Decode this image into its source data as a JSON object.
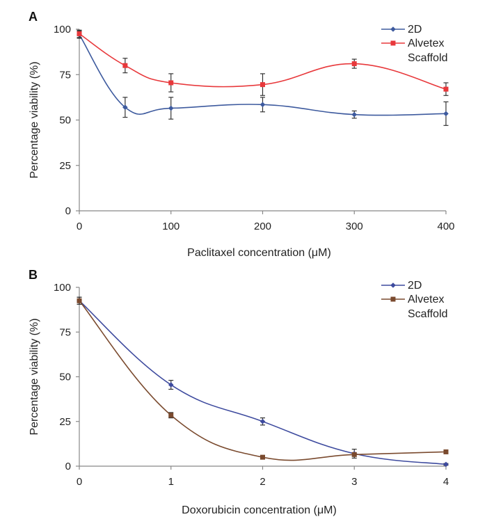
{
  "chart_data": [
    {
      "panel_label": "A",
      "type": "line",
      "xlabel": "Paclitaxel concentration (μM)",
      "ylabel": "Percentage viability (%)",
      "xlim": [
        0,
        400
      ],
      "ylim": [
        0,
        100
      ],
      "x_ticks": [
        0,
        100,
        200,
        300,
        400
      ],
      "y_ticks": [
        0,
        25,
        50,
        75,
        100
      ],
      "legend_position": "top-right",
      "series": [
        {
          "name": "2D",
          "color": "#3d5a9e",
          "marker": "diamond",
          "x": [
            0,
            50,
            100,
            200,
            300,
            400
          ],
          "values": [
            97,
            57,
            56.5,
            58.5,
            53,
            53.5
          ],
          "errors": [
            2,
            5.5,
            6,
            4,
            2,
            6.5
          ]
        },
        {
          "name": "Alvetex Scaffold",
          "color": "#e8383b",
          "marker": "square",
          "x": [
            0,
            50,
            100,
            200,
            300,
            400
          ],
          "values": [
            97.5,
            80,
            70.5,
            69.5,
            81,
            67
          ],
          "errors": [
            2,
            4,
            5,
            6,
            2.5,
            3.5
          ]
        }
      ]
    },
    {
      "panel_label": "B",
      "type": "line",
      "xlabel": "Doxorubicin concentration (μM)",
      "ylabel": "Percentage viability (%)",
      "xlim": [
        0,
        4
      ],
      "ylim": [
        0,
        100
      ],
      "x_ticks": [
        0,
        1,
        2,
        3,
        4
      ],
      "y_ticks": [
        0,
        25,
        50,
        75,
        100
      ],
      "legend_position": "top-right",
      "series": [
        {
          "name": "2D",
          "color": "#3d4a9e",
          "marker": "diamond",
          "x": [
            0,
            1,
            2,
            3,
            4
          ],
          "values": [
            92.5,
            45.5,
            25,
            7,
            1
          ],
          "errors": [
            2,
            2.5,
            2,
            2.5,
            0.5
          ]
        },
        {
          "name": "Alvetex Scaffold",
          "color": "#7a4a2e",
          "marker": "square",
          "x": [
            0,
            1,
            2,
            3,
            4
          ],
          "values": [
            92.5,
            28.5,
            5,
            6.5,
            8
          ],
          "errors": [
            2,
            1.5,
            0.5,
            1,
            0.5
          ]
        }
      ]
    }
  ]
}
